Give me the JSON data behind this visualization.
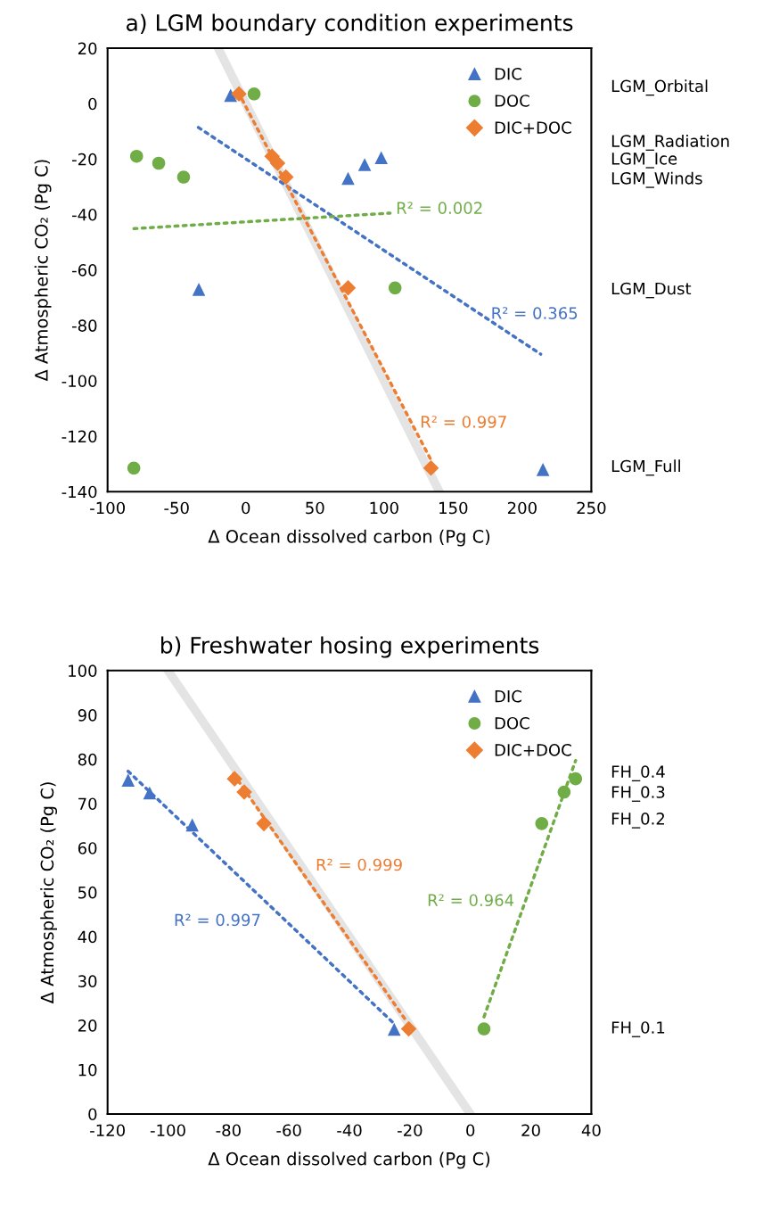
{
  "chart_data": [
    {
      "type": "scatter",
      "title": "a) LGM boundary condition experiments",
      "xlabel": "Δ Ocean dissolved carbon (Pg C)",
      "ylabel": "Δ Atmospheric CO₂ (Pg C)",
      "xlim": [
        -100,
        250
      ],
      "xticks": [
        -100,
        -50,
        0,
        50,
        100,
        150,
        200,
        250
      ],
      "ylim": [
        -140,
        20
      ],
      "yticks": [
        -140,
        -120,
        -100,
        -80,
        -60,
        -40,
        -20,
        0,
        20
      ],
      "grid": false,
      "legend": "top right",
      "series": [
        {
          "type": "line",
          "color": "#e4e4e4",
          "line_style": "solid",
          "marker": "none",
          "x": [
            -20,
            140
          ],
          "values": [
            20,
            -140
          ]
        },
        {
          "type": "line",
          "name": "R² = 0.365",
          "color": "#4472c4",
          "line_style": "dotted",
          "marker": "none",
          "x": [
            -34.3,
            213.4
          ],
          "values": [
            -8.6,
            -90.4
          ]
        },
        {
          "type": "line",
          "name": "R² = 0.002",
          "color": "#70ad47",
          "line_style": "dotted",
          "marker": "none",
          "x": [
            -80.9,
            104.4
          ],
          "values": [
            -45.1,
            -39.5
          ]
        },
        {
          "type": "line",
          "name": "R² = 0.997",
          "color": "#ed7d31",
          "line_style": "dotted",
          "marker": "none",
          "x": [
            -5.4,
            134
          ],
          "values": [
            4.1,
            -128.6
          ]
        },
        {
          "name": "DIC",
          "color": "#4472c4",
          "marker": "triangle",
          "x": [
            -11,
            98,
            86,
            74,
            -34,
            215
          ],
          "values": [
            3,
            -19.5,
            -22,
            -27,
            -67,
            -132
          ]
        },
        {
          "name": "DOC",
          "color": "#70ad47",
          "marker": "circle",
          "x": [
            6,
            -79,
            -63,
            -45,
            108,
            -81
          ],
          "values": [
            3.5,
            -19,
            -21.5,
            -26.5,
            -66.5,
            -131.5
          ]
        },
        {
          "name": "DIC+DOC",
          "color": "#ed7d31",
          "marker": "diamond",
          "x": [
            -5,
            19,
            23,
            29,
            74,
            134
          ],
          "values": [
            3.5,
            -19,
            -21.5,
            -26.5,
            -66.5,
            -131.5
          ]
        }
      ],
      "annotations": [
        "LGM_Orbital",
        "LGM_Radiation",
        "LGM_Ice",
        "LGM_Winds",
        "LGM_Dust",
        "LGM_Full"
      ]
    },
    {
      "type": "scatter",
      "title": "b) Freshwater hosing experiments",
      "xlabel": "Δ Ocean dissolved carbon (Pg C)",
      "ylabel": "Δ Atmospheric CO₂ (Pg C)",
      "xlim": [
        -120,
        40
      ],
      "xticks": [
        -120,
        -100,
        -80,
        -60,
        -40,
        -20,
        0,
        20,
        40
      ],
      "ylim": [
        0,
        100
      ],
      "yticks": [
        0,
        10,
        20,
        30,
        40,
        50,
        60,
        70,
        80,
        90,
        100
      ],
      "grid": false,
      "legend": "top right",
      "series": [
        {
          "type": "line",
          "color": "#e4e4e4",
          "line_style": "solid",
          "marker": "none",
          "x": [
            -100,
            0
          ],
          "values": [
            100,
            0
          ]
        },
        {
          "type": "line",
          "name": "R² = 0.997",
          "color": "#4472c4",
          "line_style": "dotted",
          "marker": "none",
          "x": [
            -113.2,
            -25.7
          ],
          "values": [
            77.3,
            20.7
          ]
        },
        {
          "type": "line",
          "name": "R² = 0.999",
          "color": "#ed7d31",
          "line_style": "dotted",
          "marker": "none",
          "x": [
            -78.4,
            -21.3
          ],
          "values": [
            76.7,
            21.1
          ]
        },
        {
          "type": "line",
          "name": "R² = 0.964",
          "color": "#70ad47",
          "line_style": "dotted",
          "marker": "none",
          "x": [
            4.5,
            34.8
          ],
          "values": [
            21.9,
            79.7
          ]
        },
        {
          "name": "DIC",
          "color": "#4472c4",
          "marker": "triangle",
          "x": [
            -113.2,
            -106.1,
            -92,
            -25.2
          ],
          "values": [
            75.3,
            72.4,
            65.2,
            19.1
          ]
        },
        {
          "name": "DOC",
          "color": "#70ad47",
          "marker": "circle",
          "x": [
            34.8,
            31,
            23.6,
            4.5
          ],
          "values": [
            75.6,
            72.6,
            65.5,
            19.2
          ]
        },
        {
          "name": "DIC+DOC",
          "color": "#ed7d31",
          "marker": "diamond",
          "x": [
            -78,
            -74.8,
            -68.3,
            -20.4
          ],
          "values": [
            75.6,
            72.6,
            65.5,
            19.2
          ]
        }
      ],
      "annotations": [
        "FH_0.4",
        "FH_0.3",
        "FH_0.2",
        "FH_0.1"
      ]
    }
  ]
}
